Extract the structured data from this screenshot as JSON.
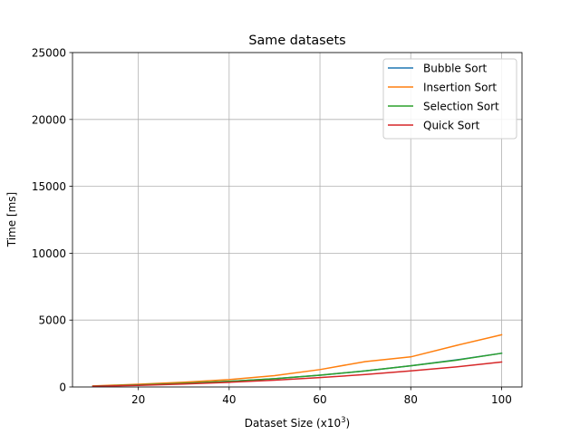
{
  "chart_data": {
    "type": "line",
    "title": "Same datasets",
    "xlabel": "Dataset Size (x10",
    "xlabel_sup": "3",
    "xlabel_close": ")",
    "ylabel": "Time [ms]",
    "xlim": [
      5.5,
      104.5
    ],
    "ylim": [
      0,
      25000
    ],
    "xticks": [
      20,
      40,
      60,
      80,
      100
    ],
    "yticks": [
      0,
      5000,
      10000,
      15000,
      20000,
      25000
    ],
    "grid": true,
    "legend_position": "top-right",
    "x": [
      10,
      20,
      30,
      40,
      50,
      60,
      70,
      80,
      90,
      100
    ],
    "series": [
      {
        "name": "Bubble Sort",
        "color": "#1f77b4",
        "values": [
          60,
          150,
          270,
          420,
          620,
          880,
          1200,
          1580,
          2020,
          2520
        ]
      },
      {
        "name": "Insertion Sort",
        "color": "#ff7f0e",
        "values": [
          80,
          200,
          360,
          550,
          850,
          1300,
          1900,
          2250,
          3100,
          3900
        ]
      },
      {
        "name": "Selection Sort",
        "color": "#2ca02c",
        "values": [
          60,
          150,
          270,
          420,
          620,
          880,
          1200,
          1580,
          2000,
          2520
        ]
      },
      {
        "name": "Quick Sort",
        "color": "#d62728",
        "values": [
          50,
          120,
          220,
          350,
          510,
          700,
          930,
          1200,
          1500,
          1870
        ]
      }
    ]
  }
}
